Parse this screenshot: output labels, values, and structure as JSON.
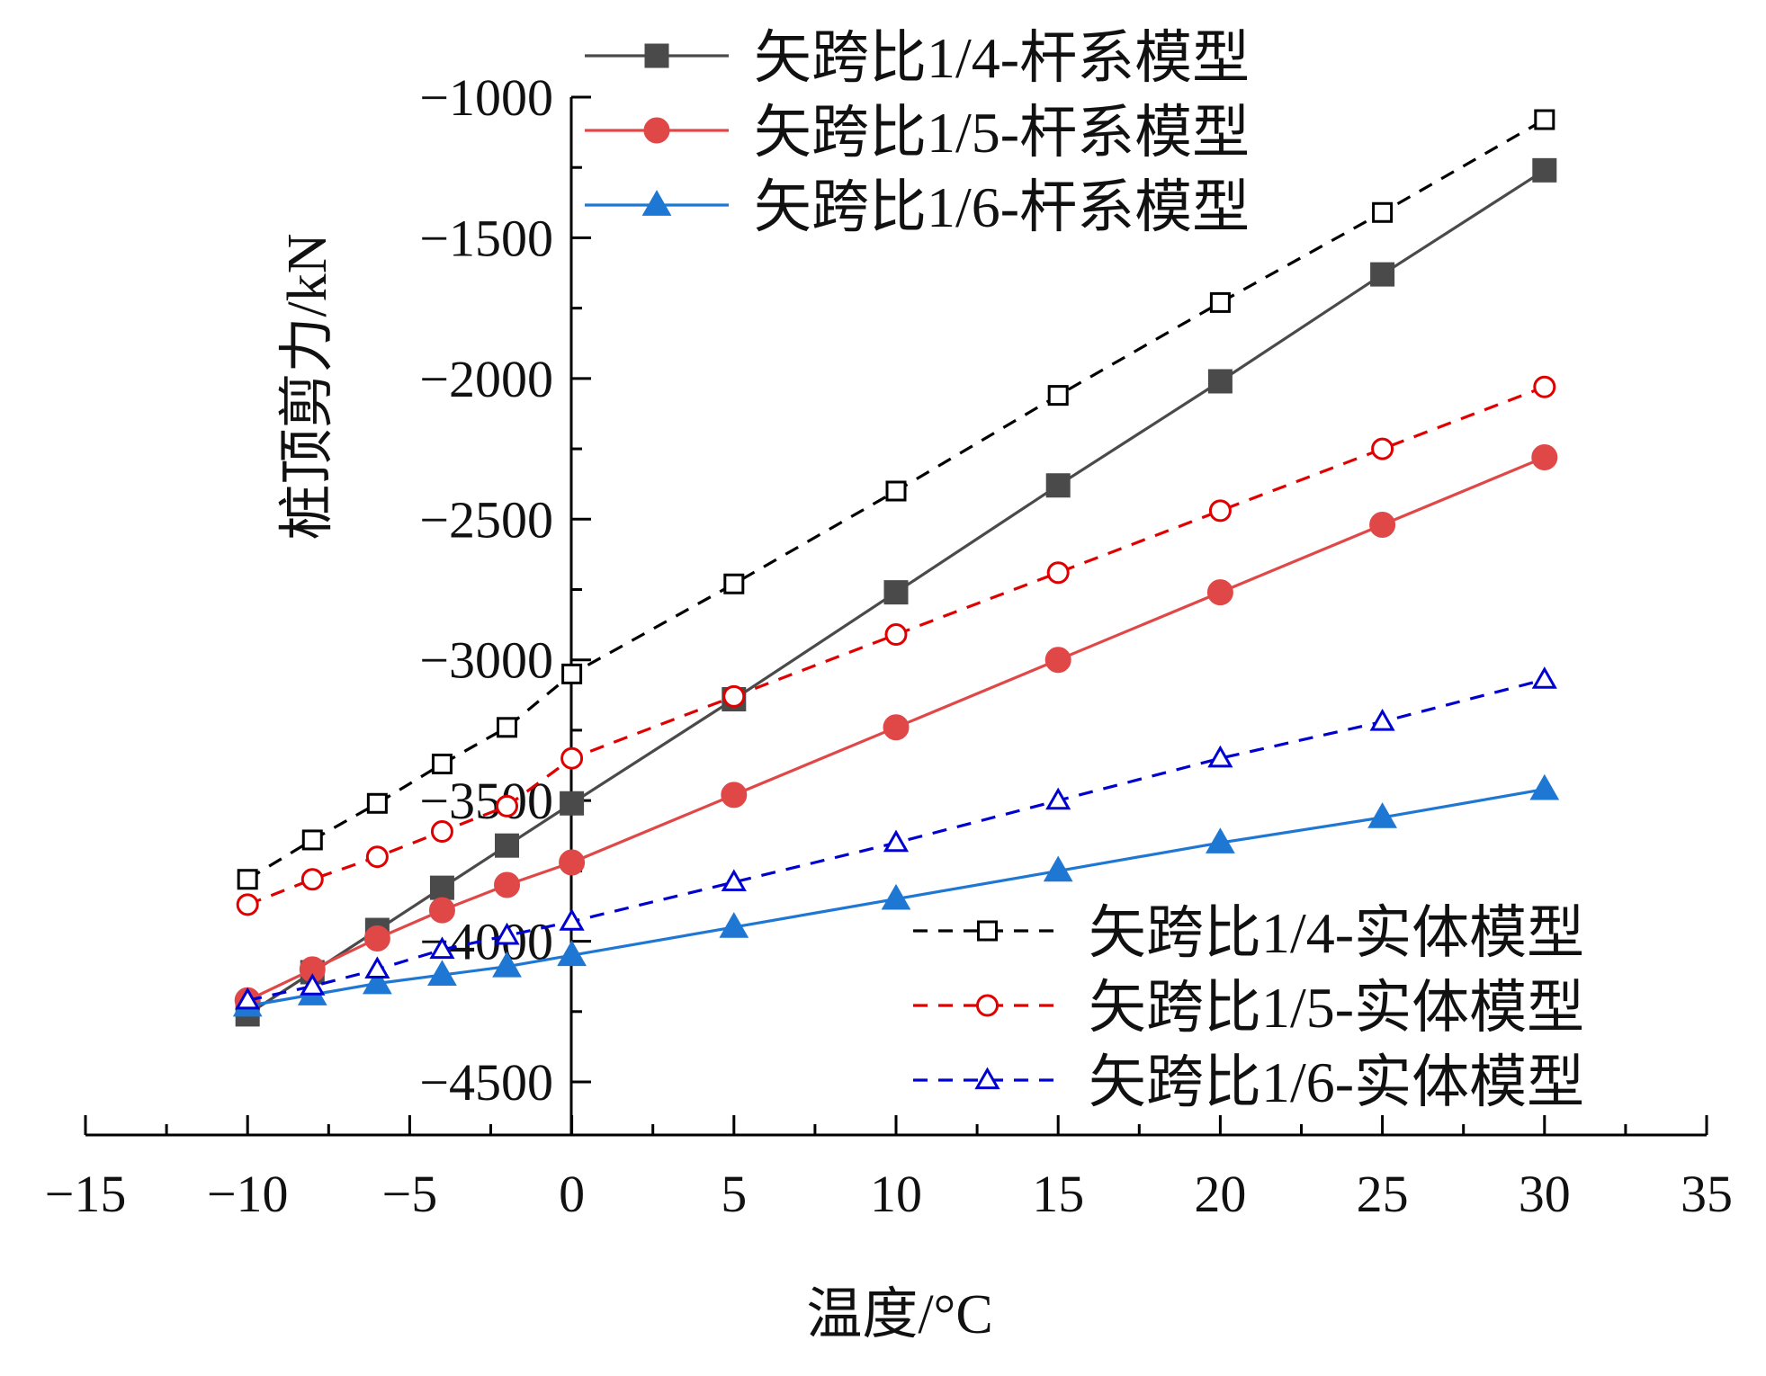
{
  "chart_data": {
    "type": "line",
    "title": "",
    "xlabel": "温度/°C",
    "ylabel": "桩顶剪力/kN",
    "xlim": [
      -15,
      35
    ],
    "ylim": [
      -4700,
      -800
    ],
    "x_ticks": [
      -15,
      -10,
      -5,
      0,
      5,
      10,
      15,
      20,
      25,
      30,
      35
    ],
    "x_tick_labels": [
      "−15",
      "−10",
      "−5",
      "0",
      "5",
      "10",
      "15",
      "20",
      "25",
      "30",
      "35"
    ],
    "y_ticks": [
      -4500,
      -4000,
      -3500,
      -3000,
      -2500,
      -2000,
      -1500,
      -1000
    ],
    "y_tick_labels": [
      "−4500",
      "−4000",
      "−3500",
      "−3000",
      "−2500",
      "−2000",
      "−1500",
      "−1000"
    ],
    "x": [
      -10,
      -8,
      -6,
      -4,
      -2,
      0,
      5,
      10,
      15,
      20,
      25,
      30
    ],
    "series": [
      {
        "name": "矢跨比1/4-杆系模型",
        "color": "#4a4a4a",
        "style": "solid",
        "marker": "square",
        "filled": true,
        "values": [
          -4260,
          -4110,
          -3960,
          -3810,
          -3660,
          -3510,
          -3140,
          -2760,
          -2380,
          -2010,
          -1630,
          -1260
        ]
      },
      {
        "name": "矢跨比1/5-杆系模型",
        "color": "#e04848",
        "style": "solid",
        "marker": "circle",
        "filled": true,
        "values": [
          -4210,
          -4100,
          -3990,
          -3890,
          -3800,
          -3720,
          -3480,
          -3240,
          -3000,
          -2760,
          -2520,
          -2280
        ]
      },
      {
        "name": "矢跨比1/6-杆系模型",
        "color": "#1f77d4",
        "style": "solid",
        "marker": "triangle",
        "filled": true,
        "values": [
          -4230,
          -4190,
          -4150,
          -4120,
          -4090,
          -4050,
          -3950,
          -3850,
          -3750,
          -3650,
          -3560,
          -3460
        ]
      },
      {
        "name": "矢跨比1/4-实体模型",
        "color": "#000000",
        "style": "dashed",
        "marker": "square",
        "filled": false,
        "values": [
          -3780,
          -3640,
          -3510,
          -3370,
          -3240,
          -3050,
          -2730,
          -2400,
          -2060,
          -1730,
          -1410,
          -1080
        ]
      },
      {
        "name": "矢跨比1/5-实体模型",
        "color": "#e00000",
        "style": "dashed",
        "marker": "circle",
        "filled": false,
        "values": [
          -3870,
          -3780,
          -3700,
          -3610,
          -3520,
          -3350,
          -3130,
          -2910,
          -2690,
          -2470,
          -2250,
          -2030
        ]
      },
      {
        "name": "矢跨比1/6-实体模型",
        "color": "#0000d0",
        "style": "dashed",
        "marker": "triangle",
        "filled": false,
        "values": [
          -4210,
          -4160,
          -4100,
          -4030,
          -3980,
          -3930,
          -3790,
          -3650,
          -3500,
          -3350,
          -3220,
          -3070
        ]
      }
    ],
    "legend": [
      {
        "placement": "top-center",
        "entries": [
          0,
          1,
          2
        ]
      },
      {
        "placement": "bottom-right",
        "entries": [
          3,
          4,
          5
        ]
      }
    ]
  }
}
